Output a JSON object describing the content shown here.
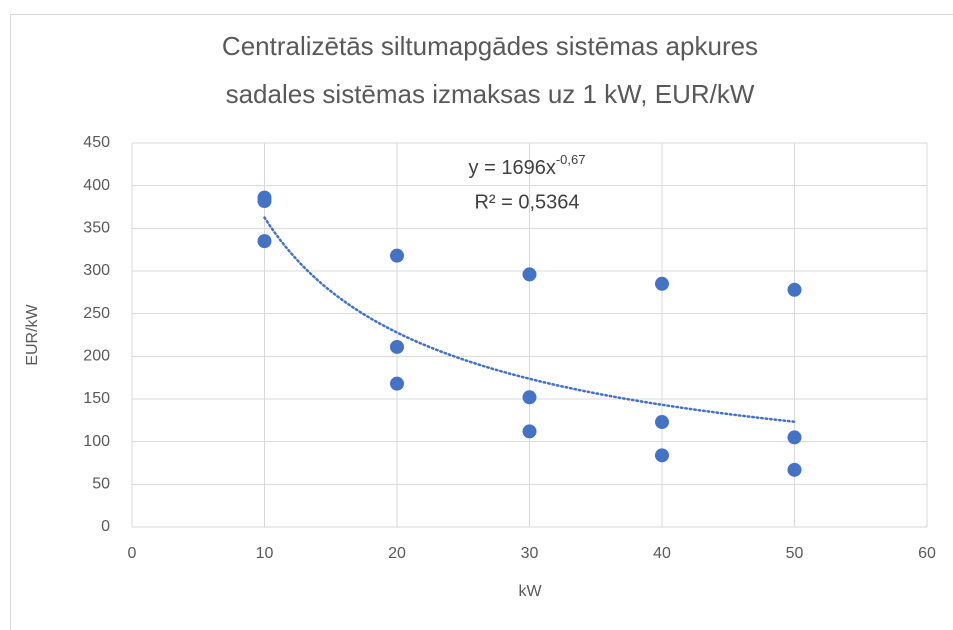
{
  "chart_data": {
    "type": "scatter",
    "title": [
      "Centralizētās siltumapgādes sistēmas apkures",
      "sadales sistēmas izmaksas uz 1 kW, EUR/kW"
    ],
    "x_label": "kW",
    "y_label": "EUR/kW",
    "x": [
      10,
      10,
      10,
      20,
      20,
      20,
      30,
      30,
      30,
      40,
      40,
      40,
      50,
      50,
      50
    ],
    "series": [
      {
        "name": "EUR/kW",
        "color": "#4472c4",
        "values": [
          386,
          382,
          335,
          318,
          211,
          168,
          296,
          152,
          112,
          285,
          123,
          84,
          278,
          105,
          67
        ]
      }
    ],
    "xlim": [
      0,
      60
    ],
    "xticks": [
      0,
      10,
      20,
      30,
      40,
      50,
      60
    ],
    "ylim": [
      0,
      450
    ],
    "yticks": [
      0,
      50,
      100,
      150,
      200,
      250,
      300,
      350,
      400,
      450
    ],
    "grid": true,
    "trendline": {
      "type": "power",
      "a": 1696,
      "b": -0.67,
      "xlim": [
        10,
        50
      ],
      "label": "y = 1696x",
      "label_exponent": "-0,67",
      "r2_label": "R² = 0,5364"
    }
  }
}
